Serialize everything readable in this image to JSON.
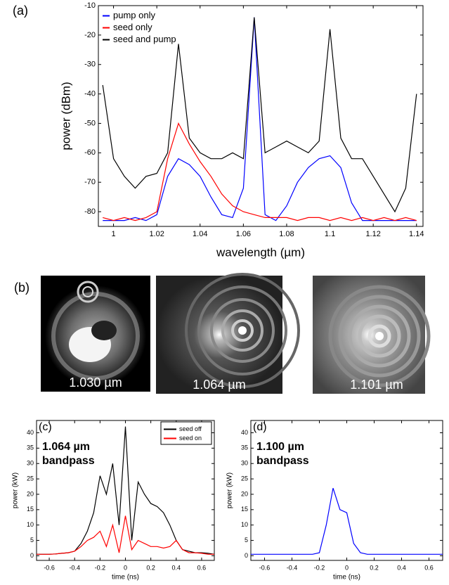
{
  "chart_data": [
    {
      "type": "line",
      "panel_label": "(a)",
      "x_label": "wavelength (µm)",
      "y_label": "power (dBm)",
      "x": [
        0.995,
        1.0,
        1.005,
        1.01,
        1.015,
        1.02,
        1.025,
        1.03,
        1.035,
        1.04,
        1.045,
        1.05,
        1.055,
        1.06,
        1.065,
        1.07,
        1.075,
        1.08,
        1.085,
        1.09,
        1.095,
        1.1,
        1.105,
        1.11,
        1.115,
        1.12,
        1.125,
        1.13,
        1.135,
        1.14
      ],
      "series": [
        {
          "name": "pump only",
          "color": "#0000ff",
          "values": [
            -83,
            -83,
            -83,
            -82,
            -83,
            -81,
            -68,
            -62,
            -64,
            -68,
            -75,
            -81,
            -82,
            -72,
            -14,
            -81,
            -83,
            -78,
            -70,
            -65,
            -62,
            -61,
            -65,
            -77,
            -83,
            -83,
            -83,
            -83,
            -83,
            -83
          ]
        },
        {
          "name": "seed only",
          "color": "#ff0000",
          "values": [
            -82,
            -83,
            -82,
            -83,
            -82,
            -80,
            -62,
            -50,
            -57,
            -63,
            -68,
            -74,
            -78,
            -80,
            -81,
            -82,
            -82,
            -82,
            -83,
            -82,
            -82,
            -83,
            -82,
            -83,
            -82,
            -83,
            -82,
            -83,
            -82,
            -83
          ]
        },
        {
          "name": "seed and pump",
          "color": "#000000",
          "values": [
            -37,
            -62,
            -68,
            -72,
            -68,
            -67,
            -60,
            -23,
            -55,
            -60,
            -62,
            -62,
            -60,
            -62,
            -14,
            -60,
            -58,
            -56,
            -58,
            -60,
            -56,
            -18,
            -55,
            -62,
            -62,
            -68,
            -74,
            -80,
            -72,
            -40
          ]
        }
      ],
      "xlim": [
        0.993,
        1.143
      ],
      "xticks": [
        1,
        1.02,
        1.04,
        1.06,
        1.08,
        1.1,
        1.12,
        1.14
      ],
      "ylim": [
        -85,
        -10
      ],
      "yticks": [
        -80,
        -70,
        -60,
        -50,
        -40,
        -30,
        -20,
        -10
      ],
      "legend": "upper left"
    },
    {
      "type": "line",
      "panel_label": "(c)",
      "x_label": "time (ns)",
      "y_label": "power (kW)",
      "annotation": [
        "1.064 µm",
        "bandpass"
      ],
      "x": [
        -0.7,
        -0.65,
        -0.6,
        -0.55,
        -0.5,
        -0.45,
        -0.4,
        -0.35,
        -0.3,
        -0.25,
        -0.2,
        -0.15,
        -0.1,
        -0.05,
        0,
        0.05,
        0.1,
        0.15,
        0.2,
        0.25,
        0.3,
        0.35,
        0.4,
        0.45,
        0.5,
        0.55,
        0.6,
        0.65,
        0.7
      ],
      "series": [
        {
          "name": "seed off",
          "color": "#000000",
          "values": [
            0.5,
            0.5,
            0.5,
            0.6,
            0.8,
            1,
            1.5,
            4,
            8,
            14,
            26,
            20,
            30,
            10,
            42,
            5,
            24,
            20,
            17,
            16,
            14,
            10,
            5,
            2,
            1.5,
            1,
            1,
            0.8,
            0.5
          ]
        },
        {
          "name": "seed on",
          "color": "#ff0000",
          "values": [
            0.5,
            0.5,
            0.5,
            0.6,
            0.8,
            1,
            1.5,
            3,
            5,
            6,
            8,
            3,
            10,
            1,
            13,
            2,
            5,
            4,
            3,
            3,
            2.5,
            3,
            5,
            2,
            1,
            1,
            0.8,
            0.5,
            0.5
          ]
        }
      ],
      "xlim": [
        -0.7,
        0.7
      ],
      "xticks": [
        -0.6,
        -0.4,
        -0.2,
        0,
        0.2,
        0.4,
        0.6
      ],
      "ylim": [
        -1.5,
        44
      ],
      "yticks": [
        0,
        5,
        10,
        15,
        20,
        25,
        30,
        35,
        40
      ],
      "legend": "upper right"
    },
    {
      "type": "line",
      "panel_label": "(d)",
      "x_label": "time (ns)",
      "y_label": "power (kW)",
      "annotation": [
        "1.100 µm",
        "bandpass"
      ],
      "x": [
        -0.7,
        -0.65,
        -0.6,
        -0.55,
        -0.5,
        -0.45,
        -0.4,
        -0.35,
        -0.3,
        -0.25,
        -0.2,
        -0.15,
        -0.1,
        -0.05,
        0,
        0.05,
        0.1,
        0.15,
        0.2,
        0.25,
        0.3,
        0.35,
        0.4,
        0.45,
        0.5,
        0.55,
        0.6,
        0.65,
        0.7
      ],
      "series": [
        {
          "color": "#0000ff",
          "values": [
            0.5,
            0.5,
            0.5,
            0.5,
            0.5,
            0.5,
            0.5,
            0.5,
            0.5,
            0.5,
            1,
            10,
            22,
            15,
            14,
            4,
            1,
            0.5,
            0.5,
            0.5,
            0.5,
            0.5,
            0.5,
            0.5,
            0.5,
            0.5,
            0.5,
            0.5,
            0.5
          ]
        }
      ],
      "xlim": [
        -0.7,
        0.7
      ],
      "xticks": [
        -0.6,
        -0.4,
        -0.2,
        0,
        0.2,
        0.4,
        0.6
      ],
      "ylim": [
        -1.5,
        44
      ],
      "yticks": [
        0,
        5,
        10,
        15,
        20,
        25,
        30,
        35,
        40
      ]
    }
  ],
  "panel_b": {
    "label": "(b)",
    "captions": [
      "1.030 µm",
      "1.064 µm",
      "1.101 µm"
    ]
  }
}
